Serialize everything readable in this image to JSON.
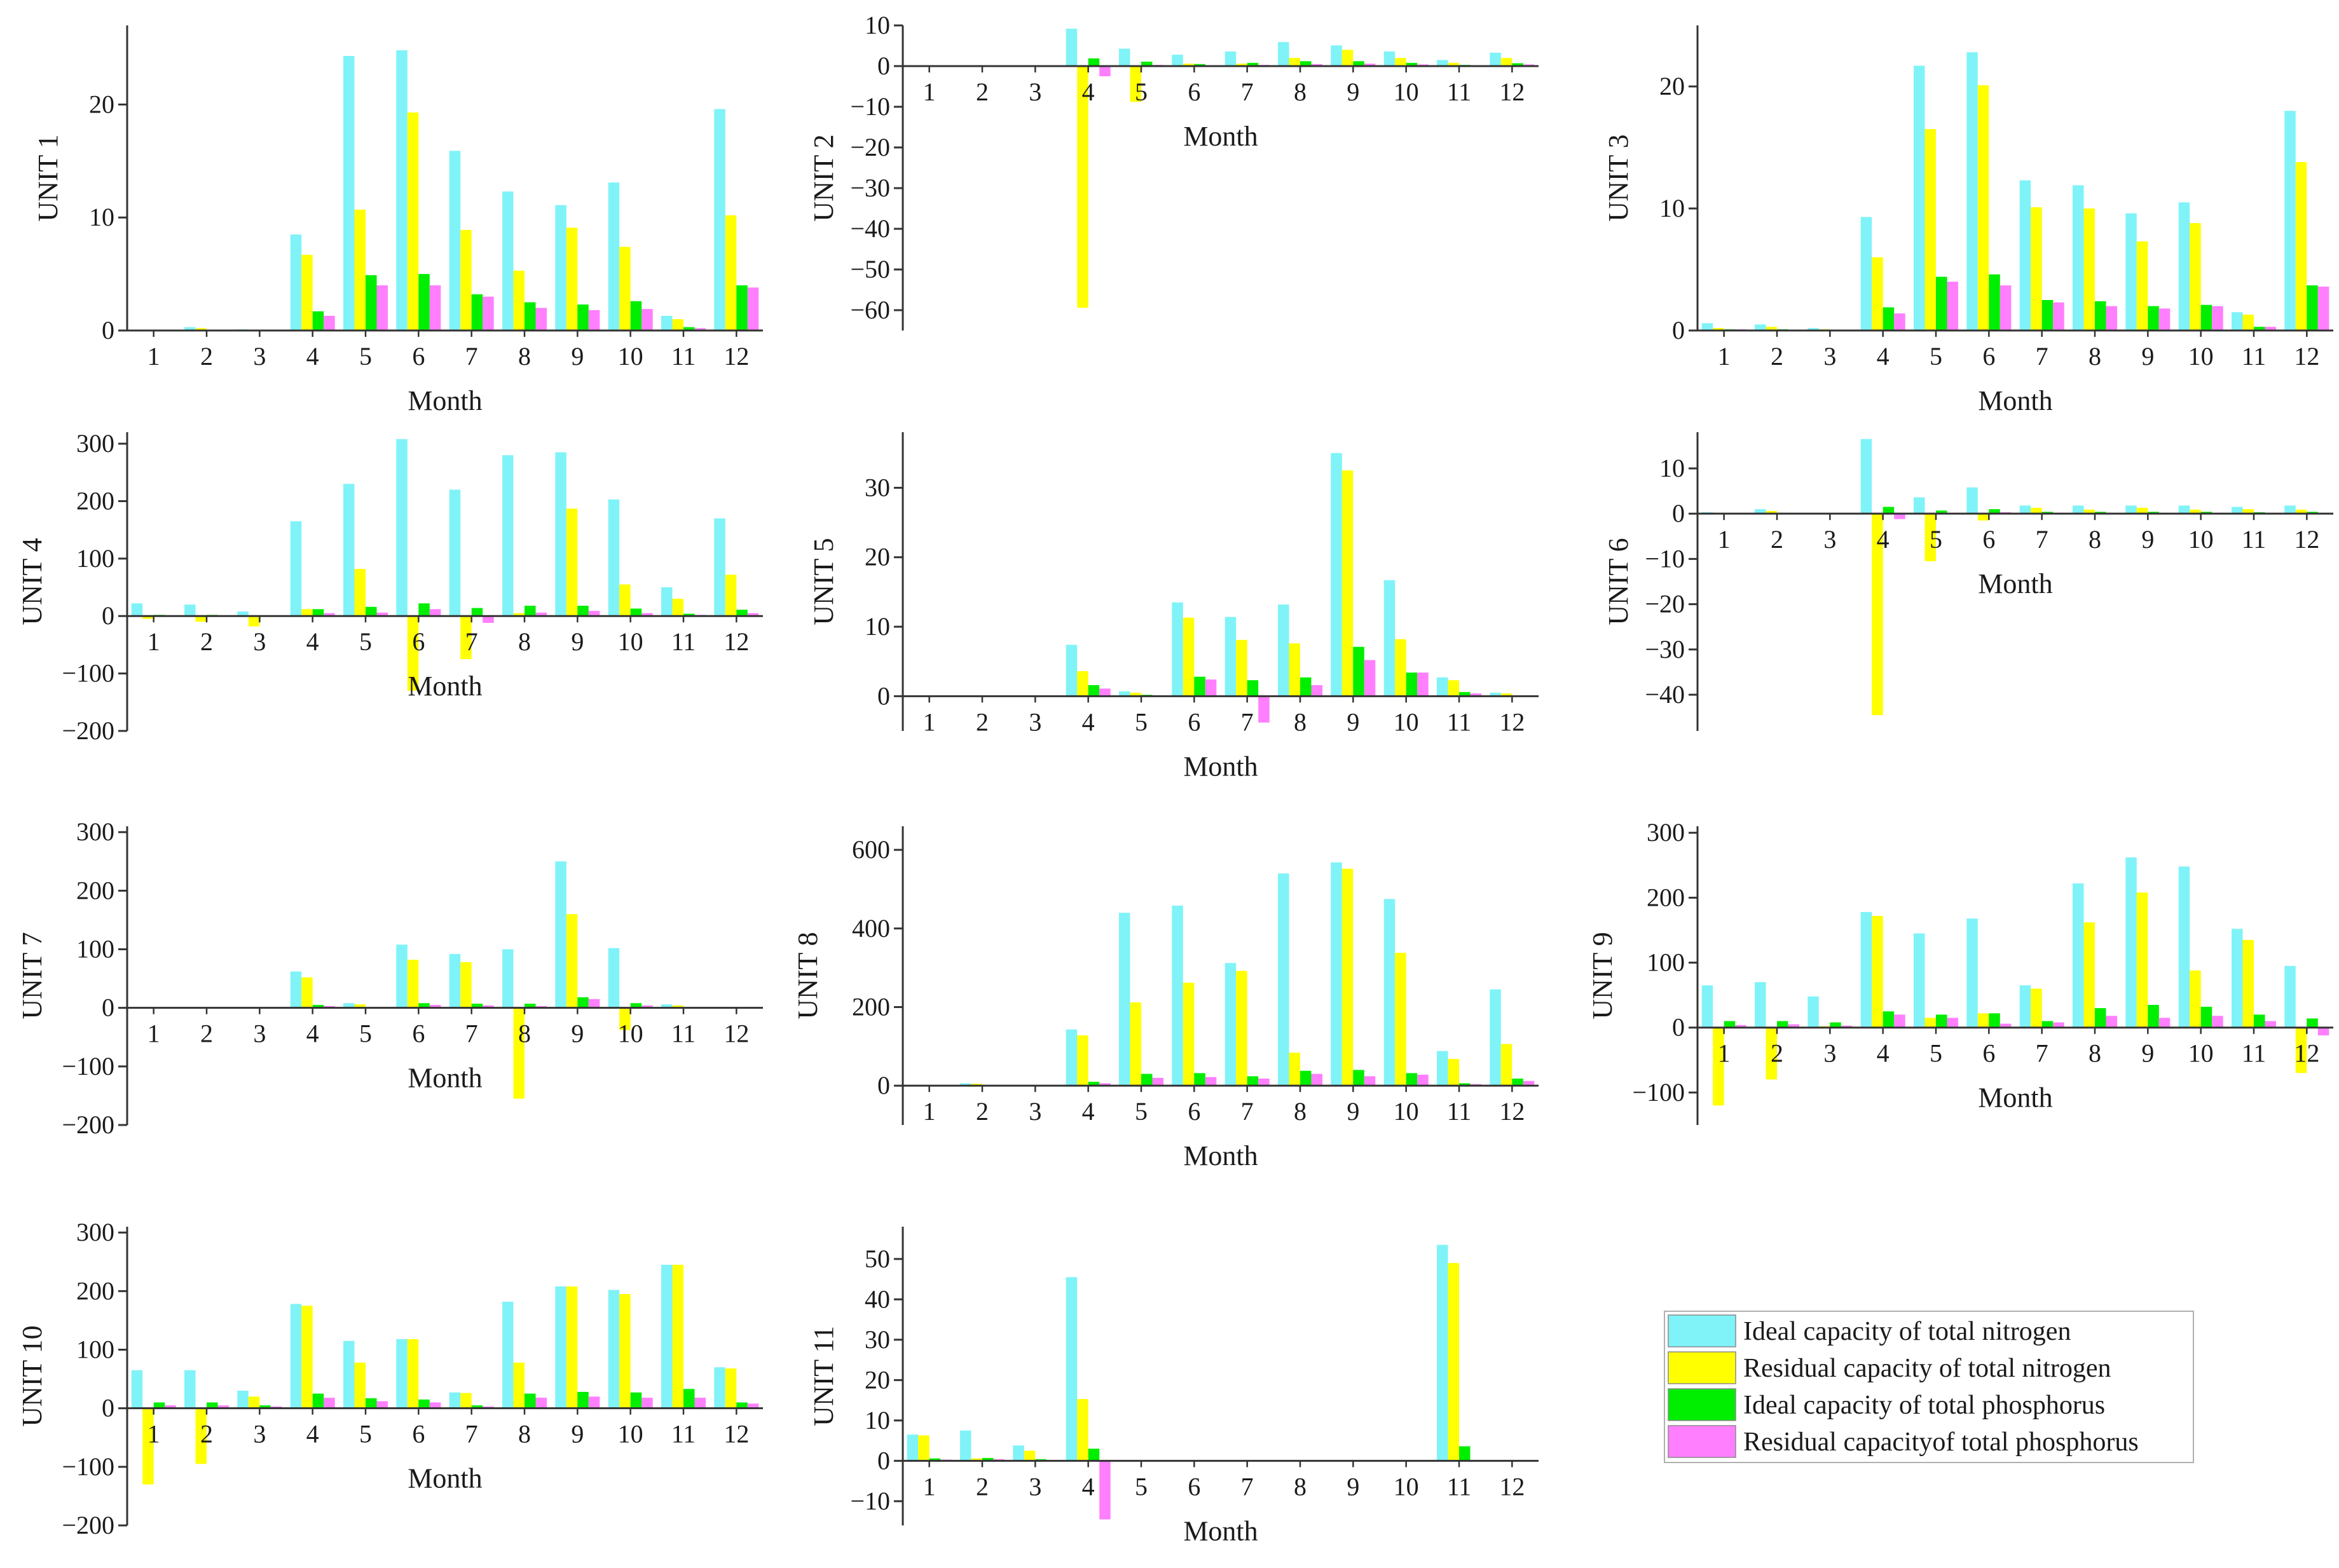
{
  "series": [
    {
      "name": "Ideal capacity of total nitrogen",
      "color": "#7ff3f8"
    },
    {
      "name": "Residual capacity of total nitrogen",
      "color": "#ffff00"
    },
    {
      "name": "Ideal capacity of total phosphorus",
      "color": "#00ee00"
    },
    {
      "name": "Residual capacityof total phosphorus",
      "color": "#ff7fff"
    }
  ],
  "colors": {
    "axis": "#333333",
    "legend_border": "#b0b0b0"
  },
  "chart_data": [
    {
      "type": "bar",
      "title": "UNIT 1",
      "ylabel": "UNIT 1",
      "xlabel": "Month",
      "categories": [
        "1",
        "2",
        "3",
        "4",
        "5",
        "6",
        "7",
        "8",
        "9",
        "10",
        "11",
        "12"
      ],
      "ylim": [
        0,
        27
      ],
      "yticks": [
        0,
        10,
        20
      ],
      "series": [
        {
          "name": "Ideal capacity of total nitrogen",
          "values": [
            0,
            0.3,
            0.1,
            8.5,
            24.3,
            24.8,
            15.9,
            12.3,
            11.1,
            13.1,
            1.3,
            19.6
          ]
        },
        {
          "name": "Residual capacity of total nitrogen",
          "values": [
            0,
            0.2,
            0.05,
            6.7,
            10.7,
            19.3,
            8.9,
            5.3,
            9.1,
            7.4,
            1.0,
            10.2
          ]
        },
        {
          "name": "Ideal capacity of total phosphorus",
          "values": [
            0,
            0.05,
            0.02,
            1.7,
            4.9,
            5.0,
            3.2,
            2.5,
            2.3,
            2.6,
            0.3,
            4.0
          ]
        },
        {
          "name": "Residual capacityof total phosphorus",
          "values": [
            0,
            0.05,
            0.01,
            1.3,
            4.0,
            4.0,
            3.0,
            2.0,
            1.8,
            1.9,
            0.2,
            3.8
          ]
        }
      ]
    },
    {
      "type": "bar",
      "title": "UNIT 2",
      "ylabel": "UNIT 2",
      "xlabel": "Month",
      "categories": [
        "1",
        "2",
        "3",
        "4",
        "5",
        "6",
        "7",
        "8",
        "9",
        "10",
        "11",
        "12"
      ],
      "ylim": [
        -65,
        10
      ],
      "yticks": [
        -60,
        -50,
        -40,
        -30,
        -20,
        -10,
        0,
        10
      ],
      "series": [
        {
          "name": "Ideal capacity of total nitrogen",
          "values": [
            0.2,
            0.2,
            0.2,
            9.2,
            4.3,
            2.8,
            3.6,
            5.9,
            5.1,
            3.6,
            1.5,
            3.3
          ]
        },
        {
          "name": "Residual capacity of total nitrogen",
          "values": [
            0.1,
            0.1,
            0.1,
            -59.4,
            -8.8,
            0.6,
            0.6,
            2.0,
            4.0,
            2.0,
            0.8,
            2.0
          ]
        },
        {
          "name": "Ideal capacity of total phosphorus",
          "values": [
            0.05,
            0.05,
            0.05,
            1.9,
            1.1,
            0.5,
            0.8,
            1.2,
            1.2,
            0.8,
            0.3,
            0.7
          ]
        },
        {
          "name": "Residual capacityof total phosphorus",
          "values": [
            0.02,
            0.02,
            0.02,
            -2.5,
            0.3,
            0.2,
            0.3,
            0.5,
            0.6,
            0.4,
            0.1,
            0.4
          ]
        }
      ]
    },
    {
      "type": "bar",
      "title": "UNIT 3",
      "ylabel": "UNIT 3",
      "xlabel": "Month",
      "categories": [
        "1",
        "2",
        "3",
        "4",
        "5",
        "6",
        "7",
        "8",
        "9",
        "10",
        "11",
        "12"
      ],
      "ylim": [
        0,
        25
      ],
      "yticks": [
        0,
        10,
        20
      ],
      "series": [
        {
          "name": "Ideal capacity of total nitrogen",
          "values": [
            0.6,
            0.5,
            0.2,
            9.3,
            21.7,
            22.8,
            12.3,
            11.9,
            9.6,
            10.5,
            1.5,
            18.0
          ]
        },
        {
          "name": "Residual capacity of total nitrogen",
          "values": [
            0.2,
            0.3,
            0.1,
            6.0,
            16.5,
            20.1,
            10.1,
            10.0,
            7.3,
            8.8,
            1.3,
            13.8
          ]
        },
        {
          "name": "Ideal capacity of total phosphorus",
          "values": [
            0.1,
            0.1,
            0.05,
            1.9,
            4.4,
            4.6,
            2.5,
            2.4,
            2.0,
            2.1,
            0.3,
            3.7
          ]
        },
        {
          "name": "Residual capacityof total phosphorus",
          "values": [
            0.1,
            0.05,
            0.02,
            1.4,
            4.0,
            3.7,
            2.3,
            2.0,
            1.8,
            2.0,
            0.3,
            3.6
          ]
        }
      ]
    },
    {
      "type": "bar",
      "title": "UNIT 4",
      "ylabel": "UNIT 4",
      "xlabel": "Month",
      "categories": [
        "1",
        "2",
        "3",
        "4",
        "5",
        "6",
        "7",
        "8",
        "9",
        "10",
        "11",
        "12"
      ],
      "ylim": [
        -200,
        320
      ],
      "yticks": [
        -200,
        -100,
        0,
        100,
        200,
        300
      ],
      "series": [
        {
          "name": "Ideal capacity of total nitrogen",
          "values": [
            22,
            20,
            8,
            165,
            230,
            308,
            220,
            280,
            285,
            203,
            50,
            170
          ]
        },
        {
          "name": "Residual capacity of total nitrogen",
          "values": [
            -5,
            -10,
            -18,
            12,
            82,
            -130,
            -75,
            5,
            187,
            55,
            30,
            72
          ]
        },
        {
          "name": "Ideal capacity of total phosphorus",
          "values": [
            2,
            2,
            1,
            12,
            16,
            22,
            14,
            18,
            18,
            13,
            4,
            11
          ]
        },
        {
          "name": "Residual capacityof total phosphorus",
          "values": [
            1,
            1,
            0,
            5,
            6,
            12,
            -12,
            6,
            9,
            5,
            2,
            5
          ]
        }
      ]
    },
    {
      "type": "bar",
      "title": "UNIT 5",
      "ylabel": "UNIT 5",
      "xlabel": "Month",
      "categories": [
        "1",
        "2",
        "3",
        "4",
        "5",
        "6",
        "7",
        "8",
        "9",
        "10",
        "11",
        "12"
      ],
      "ylim": [
        -5,
        38
      ],
      "yticks": [
        0,
        10,
        20,
        30
      ],
      "series": [
        {
          "name": "Ideal capacity of total nitrogen",
          "values": [
            0,
            0,
            0,
            7.4,
            0.7,
            13.5,
            11.4,
            13.2,
            35.0,
            16.7,
            2.7,
            0.5
          ]
        },
        {
          "name": "Residual capacity of total nitrogen",
          "values": [
            0,
            0,
            0,
            3.6,
            0.5,
            11.3,
            8.1,
            7.6,
            32.5,
            8.2,
            2.3,
            0.4
          ]
        },
        {
          "name": "Ideal capacity of total phosphorus",
          "values": [
            0,
            0,
            0,
            1.6,
            0.2,
            2.8,
            2.3,
            2.7,
            7.1,
            3.4,
            0.6,
            0.1
          ]
        },
        {
          "name": "Residual capacityof total phosphorus",
          "values": [
            0,
            0,
            0,
            1.1,
            0.1,
            2.4,
            -3.8,
            1.6,
            5.2,
            3.4,
            0.4,
            0.1
          ]
        }
      ]
    },
    {
      "type": "bar",
      "title": "UNIT 6",
      "ylabel": "UNIT 6",
      "xlabel": "Month",
      "categories": [
        "1",
        "2",
        "3",
        "4",
        "5",
        "6",
        "7",
        "8",
        "9",
        "10",
        "11",
        "12"
      ],
      "ylim": [
        -48,
        18
      ],
      "yticks": [
        -40,
        -30,
        -20,
        -10,
        0,
        10
      ],
      "series": [
        {
          "name": "Ideal capacity of total nitrogen",
          "values": [
            0.3,
            1.0,
            0.2,
            16.5,
            3.6,
            5.8,
            1.8,
            1.8,
            1.8,
            1.8,
            1.5,
            1.8
          ]
        },
        {
          "name": "Residual capacity of total nitrogen",
          "values": [
            0.2,
            0.6,
            0.1,
            -44.5,
            -10.5,
            -1.5,
            1.3,
            0.9,
            1.3,
            0.9,
            1.0,
            0.9
          ]
        },
        {
          "name": "Ideal capacity of total phosphorus",
          "values": [
            0.05,
            0.2,
            0.05,
            1.5,
            0.7,
            1.0,
            0.4,
            0.4,
            0.4,
            0.4,
            0.3,
            0.4
          ]
        },
        {
          "name": "Residual capacityof total phosphorus",
          "values": [
            0.02,
            0.1,
            0.02,
            -1.2,
            0.2,
            0.3,
            0.2,
            0.2,
            0.2,
            0.2,
            0.1,
            0.2
          ]
        }
      ]
    },
    {
      "type": "bar",
      "title": "UNIT 7",
      "ylabel": "UNIT 7",
      "xlabel": "Month",
      "categories": [
        "1",
        "2",
        "3",
        "4",
        "5",
        "6",
        "7",
        "8",
        "9",
        "10",
        "11",
        "12"
      ],
      "ylim": [
        -200,
        310
      ],
      "yticks": [
        -200,
        -100,
        0,
        100,
        200,
        300
      ],
      "series": [
        {
          "name": "Ideal capacity of total nitrogen",
          "values": [
            1,
            1,
            1,
            62,
            8,
            108,
            92,
            100,
            250,
            102,
            6,
            1
          ]
        },
        {
          "name": "Residual capacity of total nitrogen",
          "values": [
            0,
            0,
            0,
            52,
            6,
            82,
            78,
            -155,
            160,
            -38,
            4,
            0
          ]
        },
        {
          "name": "Ideal capacity of total phosphorus",
          "values": [
            0,
            0,
            0,
            5,
            1,
            8,
            7,
            7,
            18,
            8,
            1,
            0
          ]
        },
        {
          "name": "Residual capacityof total phosphorus",
          "values": [
            0,
            0,
            0,
            3,
            1,
            5,
            4,
            3,
            15,
            4,
            1,
            0
          ]
        }
      ]
    },
    {
      "type": "bar",
      "title": "UNIT 8",
      "ylabel": "UNIT 8",
      "xlabel": "Month",
      "categories": [
        "1",
        "2",
        "3",
        "4",
        "5",
        "6",
        "7",
        "8",
        "9",
        "10",
        "11",
        "12"
      ],
      "ylim": [
        -100,
        660
      ],
      "yticks": [
        0,
        200,
        400,
        600
      ],
      "series": [
        {
          "name": "Ideal capacity of total nitrogen",
          "values": [
            2,
            6,
            1,
            143,
            440,
            458,
            312,
            540,
            568,
            475,
            88,
            245
          ]
        },
        {
          "name": "Residual capacity of total nitrogen",
          "values": [
            1,
            5,
            0,
            128,
            212,
            262,
            292,
            84,
            552,
            338,
            68,
            106
          ]
        },
        {
          "name": "Ideal capacity of total phosphorus",
          "values": [
            0,
            1,
            0,
            10,
            30,
            32,
            24,
            38,
            40,
            32,
            6,
            18
          ]
        },
        {
          "name": "Residual capacityof total phosphorus",
          "values": [
            0,
            0,
            0,
            6,
            20,
            22,
            18,
            30,
            24,
            28,
            4,
            12
          ]
        }
      ]
    },
    {
      "type": "bar",
      "title": "UNIT 9",
      "ylabel": "UNIT 9",
      "xlabel": "Month",
      "categories": [
        "1",
        "2",
        "3",
        "4",
        "5",
        "6",
        "7",
        "8",
        "9",
        "10",
        "11",
        "12"
      ],
      "ylim": [
        -150,
        310
      ],
      "yticks": [
        -100,
        0,
        100,
        200,
        300
      ],
      "series": [
        {
          "name": "Ideal capacity of total nitrogen",
          "values": [
            65,
            70,
            48,
            178,
            145,
            168,
            65,
            222,
            262,
            248,
            152,
            95
          ]
        },
        {
          "name": "Residual capacity of total nitrogen",
          "values": [
            -120,
            -80,
            2,
            172,
            15,
            22,
            60,
            162,
            208,
            88,
            135,
            -70
          ]
        },
        {
          "name": "Ideal capacity of total phosphorus",
          "values": [
            10,
            10,
            8,
            25,
            20,
            22,
            10,
            30,
            35,
            32,
            20,
            14
          ]
        },
        {
          "name": "Residual capacityof total phosphorus",
          "values": [
            4,
            5,
            3,
            20,
            15,
            6,
            8,
            18,
            15,
            18,
            10,
            -12
          ]
        }
      ]
    },
    {
      "type": "bar",
      "title": "UNIT 10",
      "ylabel": "UNIT 10",
      "xlabel": "Month",
      "categories": [
        "1",
        "2",
        "3",
        "4",
        "5",
        "6",
        "7",
        "8",
        "9",
        "10",
        "11",
        "12"
      ],
      "ylim": [
        -200,
        310
      ],
      "yticks": [
        -200,
        -100,
        0,
        100,
        200,
        300
      ],
      "series": [
        {
          "name": "Ideal capacity of total nitrogen",
          "values": [
            65,
            65,
            30,
            178,
            115,
            118,
            27,
            182,
            208,
            202,
            245,
            70
          ]
        },
        {
          "name": "Residual capacity of total nitrogen",
          "values": [
            -130,
            -95,
            20,
            175,
            78,
            118,
            26,
            78,
            208,
            195,
            245,
            68
          ]
        },
        {
          "name": "Ideal capacity of total phosphorus",
          "values": [
            10,
            10,
            5,
            25,
            17,
            15,
            5,
            25,
            28,
            27,
            33,
            10
          ]
        },
        {
          "name": "Residual capacityof total phosphorus",
          "values": [
            5,
            5,
            3,
            18,
            12,
            10,
            3,
            18,
            20,
            18,
            18,
            8
          ]
        }
      ]
    },
    {
      "type": "bar",
      "title": "UNIT 11",
      "ylabel": "UNIT 11",
      "xlabel": "Month",
      "categories": [
        "1",
        "2",
        "3",
        "4",
        "5",
        "6",
        "7",
        "8",
        "9",
        "10",
        "11",
        "12"
      ],
      "ylim": [
        -16,
        58
      ],
      "yticks": [
        -10,
        0,
        10,
        20,
        30,
        40,
        50
      ],
      "series": [
        {
          "name": "Ideal capacity of total nitrogen",
          "values": [
            6.5,
            7.5,
            3.8,
            45.5,
            0,
            0,
            0,
            0,
            0,
            0,
            53.5,
            0
          ]
        },
        {
          "name": "Residual capacity of total nitrogen",
          "values": [
            6.3,
            0.6,
            2.5,
            15.3,
            0,
            0,
            0,
            0,
            0,
            0,
            49.0,
            0
          ]
        },
        {
          "name": "Ideal capacity of total phosphorus",
          "values": [
            0.6,
            0.7,
            0.4,
            3.0,
            0,
            0,
            0,
            0,
            0,
            0,
            3.6,
            0
          ]
        },
        {
          "name": "Residual capacityof total phosphorus",
          "values": [
            0.3,
            0.4,
            0.2,
            -14.5,
            0,
            0,
            0,
            0,
            0,
            0,
            0.2,
            0
          ]
        }
      ]
    }
  ]
}
